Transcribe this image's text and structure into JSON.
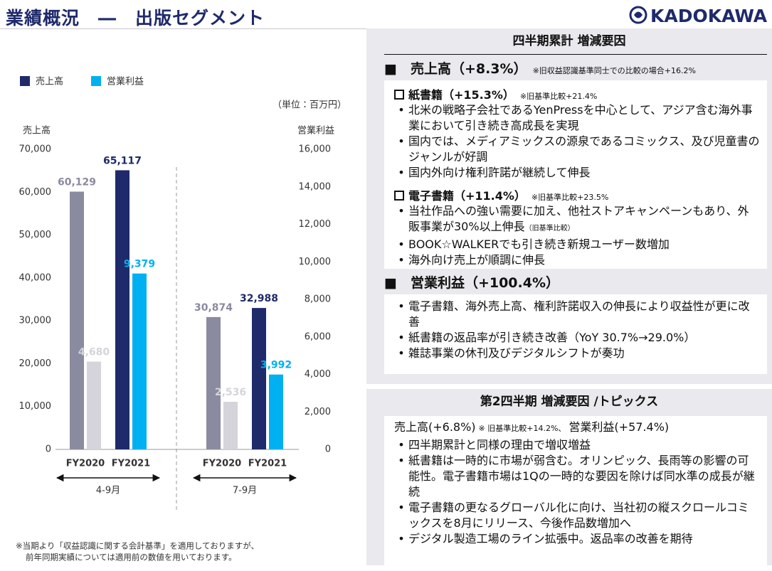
{
  "header": {
    "title": "業績概況　―　出版セグメント",
    "logo": "KADOKAWA"
  },
  "chart_data": {
    "type": "bar",
    "legend": "top-left",
    "unit_note": "（単位：百万円）",
    "ylabel": "売上高",
    "y2label": "営業利益",
    "categories": [
      "FY2020",
      "FY2021",
      "FY2020",
      "FY2021"
    ],
    "groups": [
      "4-9月",
      "7-9月"
    ],
    "series": [
      {
        "name": "売上高",
        "color": "#1f2a6b",
        "colors": [
          "#8a8aa0",
          "#1f2a6b",
          "#8a8aa0",
          "#1f2a6b"
        ],
        "values": [
          60129,
          65117,
          30874,
          32988
        ],
        "value_labels": [
          "60,129",
          "65,117",
          "30,874",
          "32,988"
        ]
      },
      {
        "name": "営業利益",
        "color": "#00b0f0",
        "axis": "y2",
        "colors": [
          "#d4d4da",
          "#00b0f0",
          "#d4d4da",
          "#00b0f0"
        ],
        "values": [
          4680,
          9379,
          2536,
          3992
        ],
        "value_labels": [
          "4,680",
          "9,379",
          "2,536",
          "3,992"
        ]
      }
    ],
    "ylim": [
      0,
      70000
    ],
    "yticks": [
      0,
      {
        "value": 10000,
        "label": "10,000"
      },
      {
        "value": 20000,
        "label": "20,000"
      },
      {
        "value": 30000,
        "label": "30,000"
      },
      {
        "value": 40000,
        "label": "40,000"
      },
      {
        "value": 50000,
        "label": "50,000"
      },
      {
        "value": 60000,
        "label": "60,000"
      },
      {
        "value": 70000,
        "label": "70,000"
      }
    ],
    "y2lim": [
      0,
      16000
    ],
    "y2ticks": [
      0,
      {
        "value": 2000,
        "label": "2,000"
      },
      {
        "value": 4000,
        "label": "4,000"
      },
      {
        "value": 6000,
        "label": "6,000"
      },
      {
        "value": 8000,
        "label": "8,000"
      },
      {
        "value": 10000,
        "label": "10,000"
      },
      {
        "value": 12000,
        "label": "12,000"
      },
      {
        "value": 14000,
        "label": "14,000"
      },
      {
        "value": 16000,
        "label": "16,000"
      }
    ],
    "footnote": [
      "※当期より「収益認識に関する会計基準」を適用しておりますが、",
      "前年同期実績については適用前の数値を用いております。"
    ]
  },
  "cumulative": {
    "title": "四半期累計 増減要因",
    "sales_heading": "■　売上高（+8.3%）",
    "sales_note": "※旧収益認識基準同士での比較の場合+16.2%",
    "subsections": [
      {
        "heading": "紙書籍（+15.3%）",
        "note": "※旧基準比較+21.4%",
        "bullets": [
          "北米の戦略子会社であるYenPressを中心として、アジア含む海外事業において引き続き高成長を実現",
          "国内では、メディアミックスの源泉であるコミックス、及び児童書のジャンルが好調",
          "国内外向け権利許諾が継続して伸長"
        ]
      },
      {
        "heading": "電子書籍（+11.4%）",
        "note": "※旧基準比較+23.5%",
        "bullets": [
          {
            "text": "当社作品への強い需要に加え、他社ストアキャンペーンもあり、外販事業が30%以上伸長",
            "note": "（旧基準比較）"
          },
          "BOOK☆WALKERでも引き続き新規ユーザー数増加",
          "海外向け売上が順調に伸長"
        ]
      }
    ],
    "profit_heading": "■　営業利益（+100.4%）",
    "profit_bullets": [
      "電子書籍、海外売上高、権利許諾収入の伸長により収益性が更に改善",
      "紙書籍の返品率が引き続き改善（YoY 30.7%→29.0%）",
      "雑誌事業の休刊及びデジタルシフトが奏功"
    ]
  },
  "quarter": {
    "title": "第2四半期 増減要因 /トピックス",
    "summary": [
      "売上高(+6.8%)",
      "※ 旧基準比較+14.2%、",
      "営業利益(+57.4%)"
    ],
    "bullets": [
      "四半期累計と同様の理由で増収増益",
      "紙書籍は一時的に市場が弱含む。オリンピック、長雨等の影響の可能性。電子書籍市場は1Qの一時的な要因を除けば同水準の成長が継続",
      "電子書籍の更なるグローバル化に向け、当社初の縦スクロールコミックスを8月にリリース、今後作品数増加へ",
      "デジタル製造工場のライン拡張中。返品率の改善を期待"
    ]
  }
}
